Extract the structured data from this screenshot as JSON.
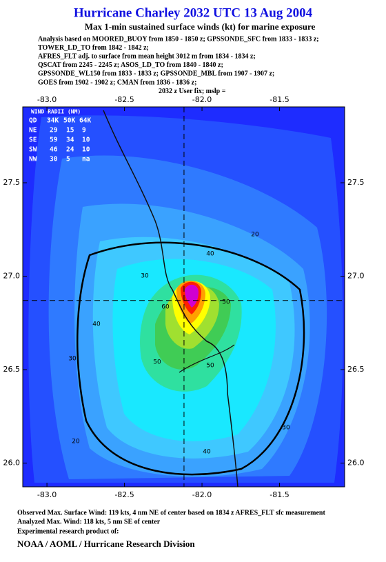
{
  "header": {
    "title": "Hurricane Charley 2032 UTC 13 Aug 2004",
    "subtitle": "Max 1-min sustained surface winds (kt) for marine exposure",
    "analysis_lines": [
      "Analysis based on  MOORED_BUOY from 1850 - 1850 z;  GPSSONDE_SFC from 1833 - 1833 z;",
      "TOWER_LD_TO from 1842 - 1842 z;",
      "AFRES_FLT adj. to surface from mean height 3012 m from 1834 - 1834 z;",
      "QSCAT from 2245 - 2245 z;  ASOS_LD_TO from 1840 - 1840 z;",
      "GPSSONDE_WL150 from 1833 - 1833 z;  GPSSONDE_MBL from 1907 - 1907 z;",
      "GOES from 1902 - 1902 z;  CMAN from 1836 - 1836 z;",
      "2032 z User fix; mslp ="
    ]
  },
  "map": {
    "xlim": [
      -83.156,
      -81.08
    ],
    "ylim": [
      25.873,
      27.906
    ],
    "xticks": [
      {
        "value": -83,
        "label": "-83.0"
      },
      {
        "value": -82.5,
        "label": "-82.5"
      },
      {
        "value": -82,
        "label": "-82.0"
      },
      {
        "value": -81.5,
        "label": "-81.5"
      }
    ],
    "yticks": [
      {
        "value": 26,
        "label": "26.0"
      },
      {
        "value": 26.5,
        "label": "26.5"
      },
      {
        "value": 27,
        "label": "27.0"
      },
      {
        "value": 27.5,
        "label": "27.5"
      }
    ],
    "center": [
      -82.116,
      26.87
    ],
    "contour_labels": [
      20,
      20,
      30,
      30,
      30,
      40,
      40,
      40,
      50,
      50,
      50,
      60
    ]
  },
  "wind_radii": {
    "title": "WIND RADII (NM)",
    "columns": [
      "QD",
      "34K",
      "50K",
      "64K"
    ],
    "rows": [
      [
        "NE",
        "29",
        "15",
        "9"
      ],
      [
        "SE",
        "59",
        "34",
        "10"
      ],
      [
        "SW",
        "46",
        "24",
        "10"
      ],
      [
        "NW",
        "30",
        "5",
        "na"
      ]
    ]
  },
  "footer": {
    "lines": [
      "Observed Max. Surface Wind: 119 kts, 4 nm NE of center based on 1834 z AFRES_FLT sfc measurement",
      "Analyzed Max. Wind: 118 kts, 5 nm SE of center",
      "Experimental research product of:"
    ],
    "credit": "NOAA / AOML / Hurricane Research Division"
  }
}
